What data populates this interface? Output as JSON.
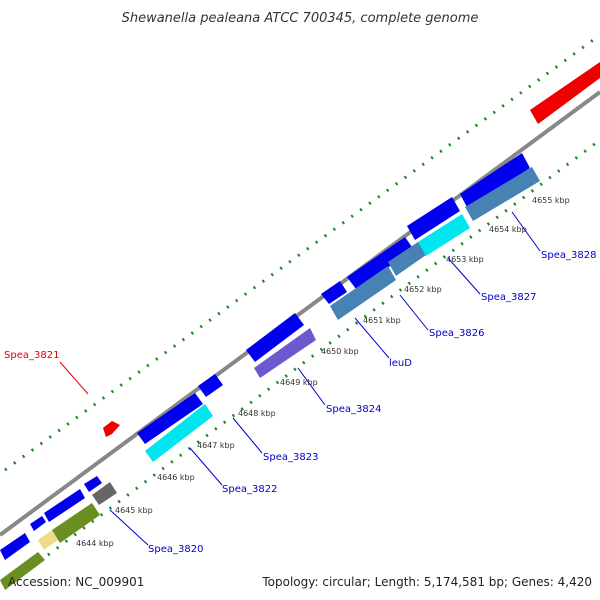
{
  "title": "Shewanella pealeana ATCC 700345, complete genome",
  "footer": {
    "accession": "Accession: NC_009901",
    "summary": "Topology: circular; Length: 5,174,581 bp; Genes: 4,420"
  },
  "ticks": [
    "4644 kbp",
    "4645 kbp",
    "4646 kbp",
    "4647 kbp",
    "4648 kbp",
    "4649 kbp",
    "4650 kbp",
    "4651 kbp",
    "4652 kbp",
    "4653 kbp",
    "4654 kbp",
    "4655 kbp"
  ],
  "gene_labels": [
    {
      "text": "Spea_3821",
      "color": "#dd0000"
    },
    {
      "text": "Spea_3820",
      "color": "#0000cc"
    },
    {
      "text": "Spea_3822",
      "color": "#0000cc"
    },
    {
      "text": "Spea_3823",
      "color": "#0000cc"
    },
    {
      "text": "Spea_3824",
      "color": "#0000cc"
    },
    {
      "text": "leuD",
      "color": "#0000cc"
    },
    {
      "text": "Spea_3826",
      "color": "#0000cc"
    },
    {
      "text": "Spea_3827",
      "color": "#0000cc"
    },
    {
      "text": "Spea_3828",
      "color": "#0000cc"
    }
  ],
  "colors": {
    "cds": "#0000ee",
    "rna": "#00e5ee",
    "special": "#4682b4",
    "accent_red": "#ff0000",
    "olive": "#6b8e23",
    "tick_green": "#1a8a1a"
  }
}
